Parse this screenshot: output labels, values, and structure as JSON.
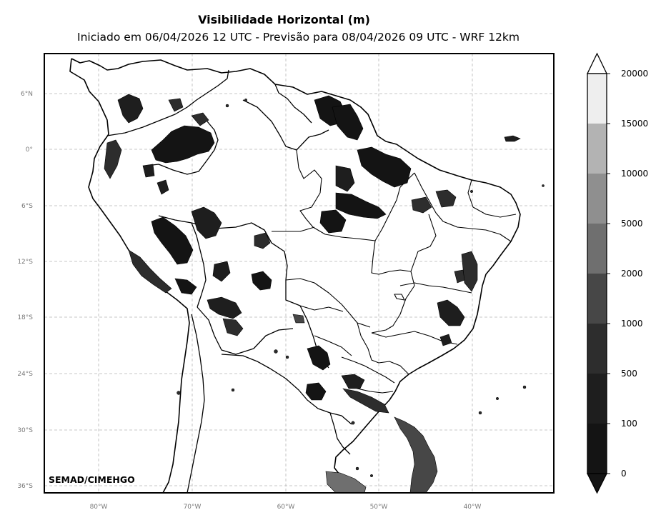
{
  "title": "Visibilidade Horizontal (m)",
  "subtitle": "Iniciado em 06/04/2026 12 UTC - Previsão para 08/04/2026 09 UTC - WRF 12km",
  "credit": "SEMAD/CIMEHGO",
  "lat_labels": [
    "6°N",
    "0°",
    "6°S",
    "12°S",
    "18°S",
    "24°S",
    "30°S",
    "36°S"
  ],
  "lon_labels": [
    "80°W",
    "70°W",
    "60°W",
    "50°W",
    "40°W"
  ],
  "colorbar": {
    "labels": [
      "0",
      "100",
      "500",
      "1000",
      "2000",
      "5000",
      "10000",
      "15000",
      "20000"
    ],
    "colors": [
      "#141414",
      "#1e1e1e",
      "#2d2d2d",
      "#474747",
      "#6f6f6f",
      "#8f8f8f",
      "#b3b3b3",
      "#eeeeee"
    ]
  },
  "chart_data": {
    "type": "heatmap",
    "variable": "Visibilidade Horizontal (m)",
    "levels": [
      0,
      100,
      500,
      1000,
      2000,
      5000,
      10000,
      15000,
      20000
    ],
    "extend": "both",
    "grid": true,
    "lat_ticks": [
      6,
      0,
      -6,
      -12,
      -18,
      -24,
      -30,
      -36
    ],
    "lon_ticks": [
      -80,
      -70,
      -60,
      -50,
      -40
    ]
  }
}
